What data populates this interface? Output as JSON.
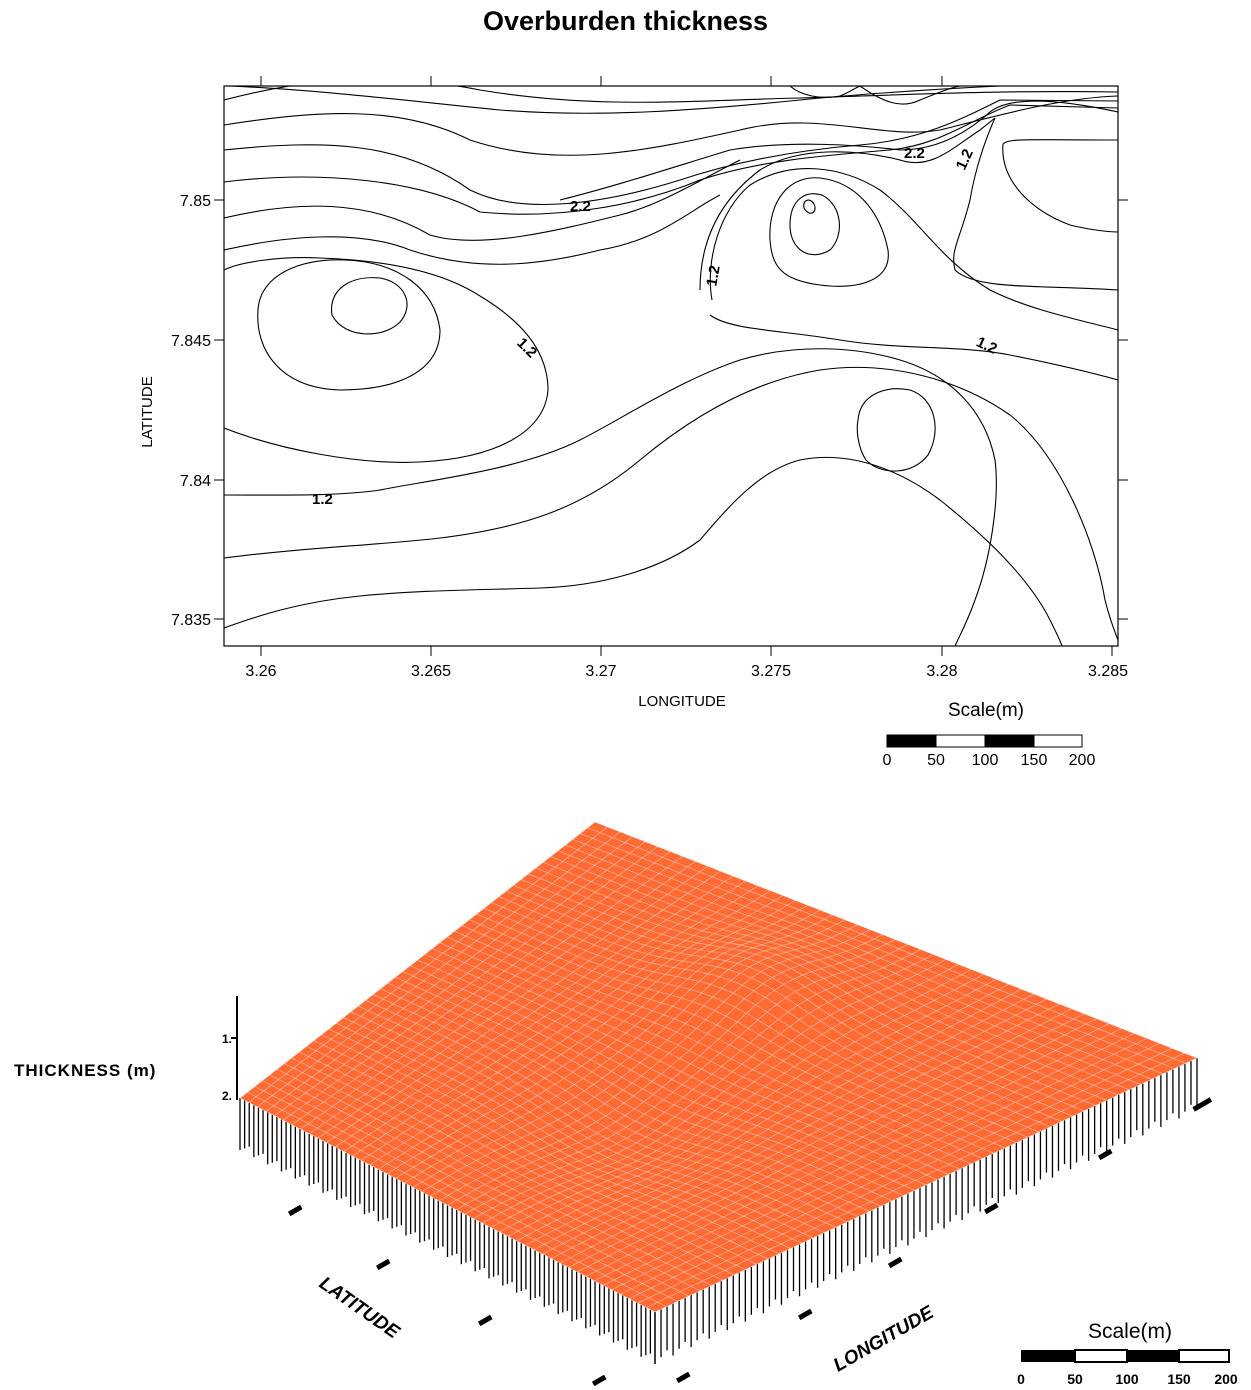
{
  "title": "Overburden thickness",
  "colors": {
    "surface": "#ff6a33",
    "line": "#000000"
  },
  "chart_data": [
    {
      "type": "contour",
      "xlabel": "LONGITUDE",
      "ylabel": "LATITUDE",
      "xlim": [
        3.259,
        3.2855
      ],
      "ylim": [
        3.8338,
        7.8538
      ],
      "ylim_note": "",
      "x_ticks": [
        "3.26",
        "3.265",
        "3.27",
        "3.275",
        "3.28",
        "3.285"
      ],
      "y_ticks": [
        "7.835",
        "7.84",
        "7.845",
        "7.85"
      ],
      "contour_labels": [
        "2.2",
        "2.2",
        "1.2",
        "1.2",
        "1.2",
        "1.2",
        "1.2"
      ],
      "scale_bar": {
        "label": "Scale(m)",
        "ticks": [
          "0",
          "50",
          "100",
          "150",
          "200"
        ]
      }
    },
    {
      "type": "surface",
      "zlabel": "THICKNESS (m)",
      "z_ticks": [
        "1.",
        "2."
      ],
      "xlabel": "LATITUDE",
      "ylabel": "LONGITUDE",
      "scale_bar": {
        "label": "Scale(m)",
        "ticks": [
          "0",
          "50",
          "100",
          "150",
          "200"
        ]
      }
    }
  ]
}
